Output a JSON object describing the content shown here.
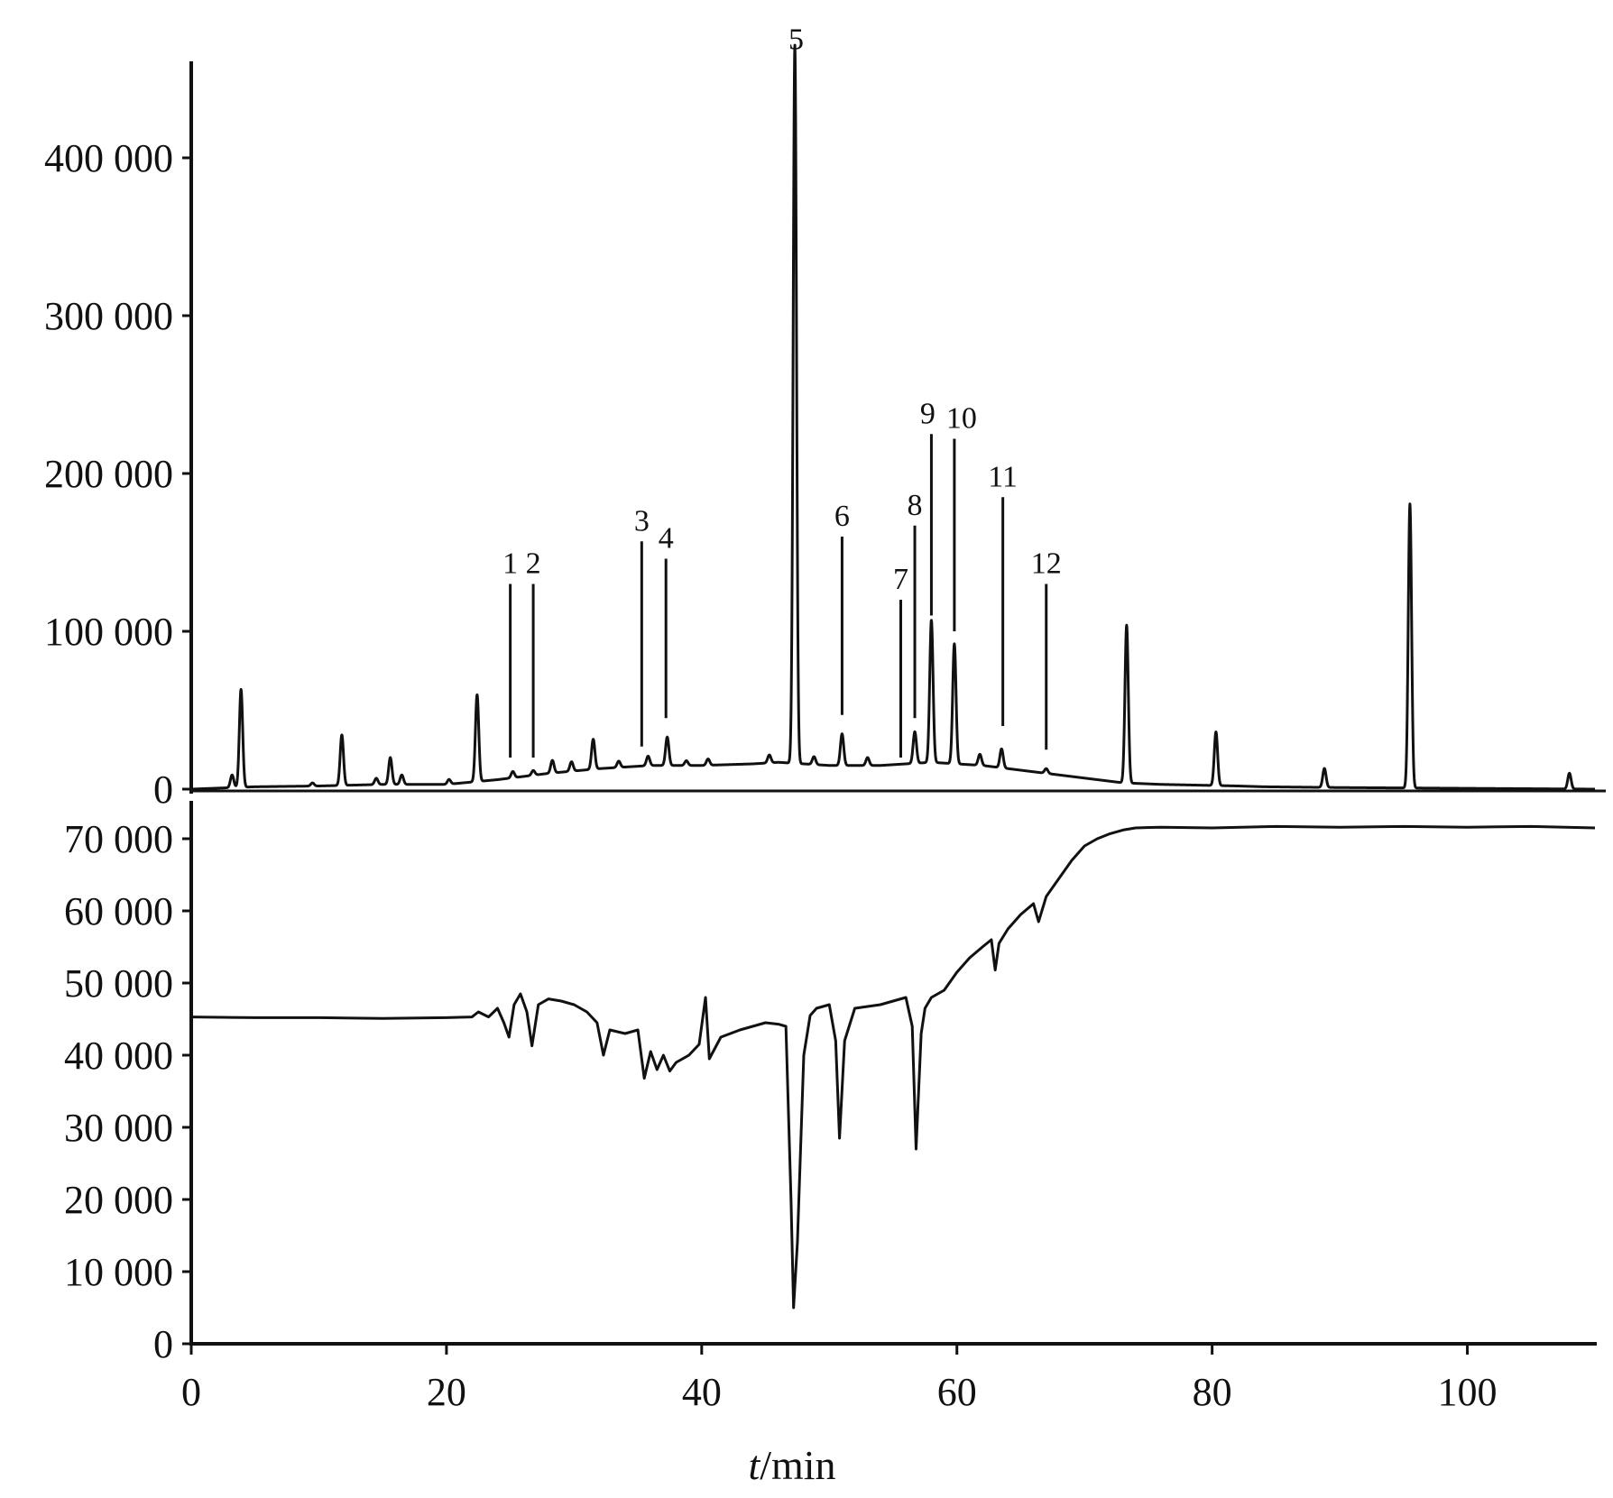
{
  "figure": {
    "xlabel_italic": "t",
    "xlabel_rest": "/min"
  },
  "chart_data": [
    {
      "type": "line",
      "name": "top",
      "xlim": [
        0,
        110
      ],
      "ylim": [
        0,
        460000
      ],
      "y_ticks": [
        0,
        100000,
        200000,
        300000,
        400000
      ],
      "y_tick_labels": [
        "0",
        "100 000",
        "200 000",
        "300 000",
        "400 000"
      ],
      "baseline": [
        [
          0,
          0
        ],
        [
          5,
          1500
        ],
        [
          10,
          2000
        ],
        [
          15,
          3000
        ],
        [
          20,
          3000
        ],
        [
          24,
          6000
        ],
        [
          28,
          10000
        ],
        [
          32,
          13000
        ],
        [
          36,
          15000
        ],
        [
          40,
          15000
        ],
        [
          44,
          16000
        ],
        [
          46,
          17000
        ],
        [
          50,
          15000
        ],
        [
          54,
          15000
        ],
        [
          58,
          17000
        ],
        [
          62,
          15000
        ],
        [
          66,
          11000
        ],
        [
          70,
          7000
        ],
        [
          73,
          4000
        ],
        [
          76,
          3000
        ],
        [
          82,
          2000
        ],
        [
          84,
          1500
        ],
        [
          90,
          1000
        ],
        [
          100,
          500
        ],
        [
          110,
          0
        ]
      ],
      "peaks": [
        [
          3.2,
          8000
        ],
        [
          3.9,
          62000
        ],
        [
          9.5,
          2000
        ],
        [
          11.8,
          32000
        ],
        [
          14.5,
          4000
        ],
        [
          15.6,
          17000
        ],
        [
          16.5,
          6000
        ],
        [
          20.2,
          3000
        ],
        [
          22.4,
          55000
        ],
        [
          25.2,
          4000
        ],
        [
          26.8,
          3000
        ],
        [
          28.3,
          8000
        ],
        [
          29.8,
          6000
        ],
        [
          31.5,
          19000
        ],
        [
          33.5,
          4000
        ],
        [
          35.8,
          6000
        ],
        [
          37.3,
          18000
        ],
        [
          38.8,
          3000
        ],
        [
          40.5,
          4000
        ],
        [
          45.3,
          5000
        ],
        [
          47.3,
          455000
        ],
        [
          48.8,
          5000
        ],
        [
          51.0,
          20000
        ],
        [
          53.0,
          5000
        ],
        [
          56.7,
          20000
        ],
        [
          58.0,
          90000
        ],
        [
          59.8,
          76000
        ],
        [
          61.8,
          7000
        ],
        [
          63.5,
          12000
        ],
        [
          67.0,
          3000
        ],
        [
          73.3,
          100000
        ],
        [
          80.3,
          34000
        ],
        [
          88.8,
          12000
        ],
        [
          95.5,
          180000
        ],
        [
          108.0,
          10000
        ]
      ],
      "peak_labels": [
        {
          "label": "1",
          "x": 25.0,
          "y_top": 130000,
          "y_bottom": 20000
        },
        {
          "label": "2",
          "x": 26.8,
          "y_top": 130000,
          "y_bottom": 20000
        },
        {
          "label": "3",
          "x": 35.3,
          "y_top": 157000,
          "y_bottom": 27000
        },
        {
          "label": "4",
          "x": 37.2,
          "y_top": 146000,
          "y_bottom": 45000
        },
        {
          "label": "5",
          "x": 47.4,
          "y_top": 462000,
          "y_bottom": 455000
        },
        {
          "label": "6",
          "x": 51.0,
          "y_top": 160000,
          "y_bottom": 47000
        },
        {
          "label": "7",
          "x": 55.6,
          "y_top": 120000,
          "y_bottom": 20000
        },
        {
          "label": "8",
          "x": 56.7,
          "y_top": 167000,
          "y_bottom": 45000
        },
        {
          "label": "9",
          "x": 58.0,
          "y_top": 225000,
          "y_bottom": 110000
        },
        {
          "label": "10",
          "x": 59.8,
          "y_top": 222000,
          "y_bottom": 100000
        },
        {
          "label": "11",
          "x": 63.6,
          "y_top": 185000,
          "y_bottom": 40000
        },
        {
          "label": "12",
          "x": 67.0,
          "y_top": 130000,
          "y_bottom": 25000
        }
      ]
    },
    {
      "type": "line",
      "name": "bottom",
      "xlim": [
        0,
        110
      ],
      "ylim": [
        0,
        75000
      ],
      "x_ticks": [
        0,
        20,
        40,
        60,
        80,
        100
      ],
      "x_tick_labels": [
        "0",
        "20",
        "40",
        "60",
        "80",
        "100"
      ],
      "y_ticks": [
        0,
        10000,
        20000,
        30000,
        40000,
        50000,
        60000,
        70000
      ],
      "y_tick_labels": [
        "0",
        "10 000",
        "20 000",
        "30 000",
        "40 000",
        "50 000",
        "60 000",
        "70 000"
      ],
      "points": [
        [
          0,
          45300
        ],
        [
          5,
          45200
        ],
        [
          10,
          45200
        ],
        [
          15,
          45100
        ],
        [
          20,
          45200
        ],
        [
          22,
          45300
        ],
        [
          22.5,
          46000
        ],
        [
          23.3,
          45300
        ],
        [
          24,
          46500
        ],
        [
          24.5,
          44500
        ],
        [
          24.9,
          42500
        ],
        [
          25.3,
          47000
        ],
        [
          25.8,
          48500
        ],
        [
          26.3,
          46000
        ],
        [
          26.7,
          41300
        ],
        [
          27.2,
          47000
        ],
        [
          28,
          47800
        ],
        [
          29,
          47500
        ],
        [
          30,
          47000
        ],
        [
          31,
          46000
        ],
        [
          31.8,
          44500
        ],
        [
          32.3,
          40000
        ],
        [
          32.8,
          43500
        ],
        [
          34,
          43000
        ],
        [
          35,
          43500
        ],
        [
          35.5,
          36800
        ],
        [
          36,
          40500
        ],
        [
          36.5,
          38000
        ],
        [
          37,
          40000
        ],
        [
          37.5,
          37800
        ],
        [
          38,
          39000
        ],
        [
          39,
          40000
        ],
        [
          39.8,
          41500
        ],
        [
          40.3,
          48000
        ],
        [
          40.6,
          39500
        ],
        [
          41.5,
          42500
        ],
        [
          43,
          43500
        ],
        [
          45,
          44500
        ],
        [
          46,
          44300
        ],
        [
          46.6,
          44000
        ],
        [
          47.0,
          20000
        ],
        [
          47.2,
          5000
        ],
        [
          47.5,
          14000
        ],
        [
          48,
          40000
        ],
        [
          48.5,
          45500
        ],
        [
          49,
          46500
        ],
        [
          50,
          47000
        ],
        [
          50.5,
          42000
        ],
        [
          50.8,
          28500
        ],
        [
          51.2,
          42000
        ],
        [
          52,
          46500
        ],
        [
          54,
          47000
        ],
        [
          56,
          48000
        ],
        [
          56.5,
          44000
        ],
        [
          56.8,
          27000
        ],
        [
          57.2,
          43000
        ],
        [
          57.5,
          46500
        ],
        [
          58,
          48000
        ],
        [
          59,
          49000
        ],
        [
          60,
          51500
        ],
        [
          61,
          53500
        ],
        [
          62,
          55000
        ],
        [
          62.7,
          56000
        ],
        [
          63,
          51800
        ],
        [
          63.3,
          55500
        ],
        [
          64,
          57500
        ],
        [
          65,
          59500
        ],
        [
          66,
          61000
        ],
        [
          66.4,
          58500
        ],
        [
          67,
          62000
        ],
        [
          68,
          64500
        ],
        [
          69,
          67000
        ],
        [
          70,
          69000
        ],
        [
          71,
          70000
        ],
        [
          72,
          70700
        ],
        [
          73,
          71200
        ],
        [
          74,
          71500
        ],
        [
          76,
          71600
        ],
        [
          80,
          71500
        ],
        [
          85,
          71700
        ],
        [
          90,
          71600
        ],
        [
          95,
          71700
        ],
        [
          100,
          71600
        ],
        [
          105,
          71700
        ],
        [
          110,
          71500
        ]
      ]
    }
  ]
}
